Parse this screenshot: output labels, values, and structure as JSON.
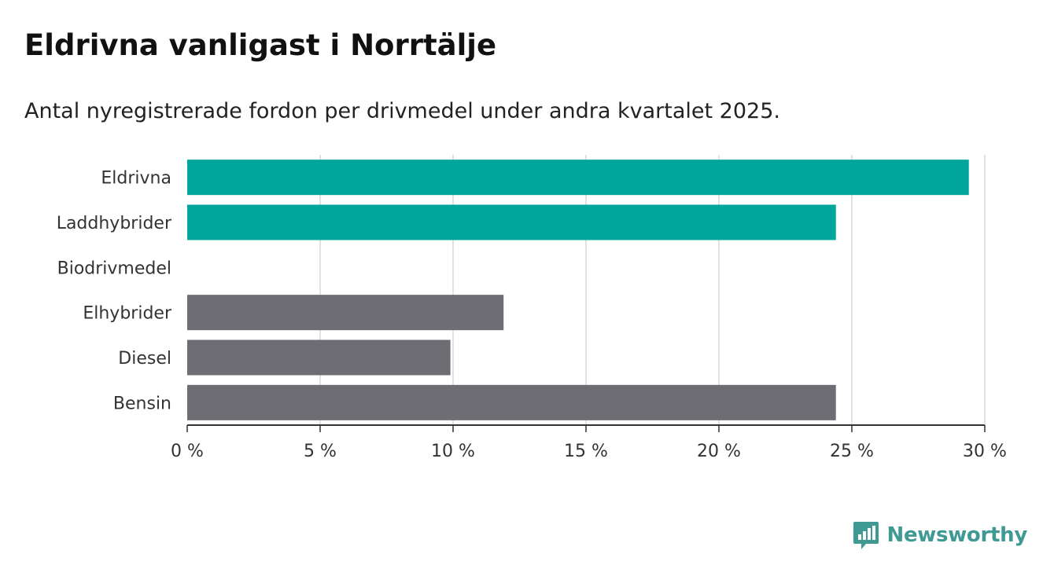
{
  "title": "Eldrivna vanligast i Norrtälje",
  "subtitle": "Antal nyregistrerade fordon per drivmedel under andra kvartalet 2025.",
  "brand": {
    "name": "Newsworthy",
    "icon": "newsworthy-logo-icon",
    "color": "#3f9a94"
  },
  "colors": {
    "highlight": "#00a69b",
    "default": "#6e6d73",
    "grid": "#d9d9d9",
    "axis": "#333333"
  },
  "chart_data": {
    "type": "bar",
    "orientation": "horizontal",
    "categories": [
      "Eldrivna",
      "Laddhybrider",
      "Biodrivmedel",
      "Elhybrider",
      "Diesel",
      "Bensin"
    ],
    "values": [
      29.4,
      24.4,
      0,
      11.9,
      9.9,
      24.4
    ],
    "highlight": [
      true,
      true,
      false,
      false,
      false,
      false
    ],
    "xlim": [
      0,
      30
    ],
    "xticks": [
      0,
      5,
      10,
      15,
      20,
      25,
      30
    ],
    "xtick_labels": [
      "0 %",
      "5 %",
      "10 %",
      "15 %",
      "20 %",
      "25 %",
      "30 %"
    ],
    "xlabel": "",
    "ylabel": "",
    "grid": "vertical"
  }
}
